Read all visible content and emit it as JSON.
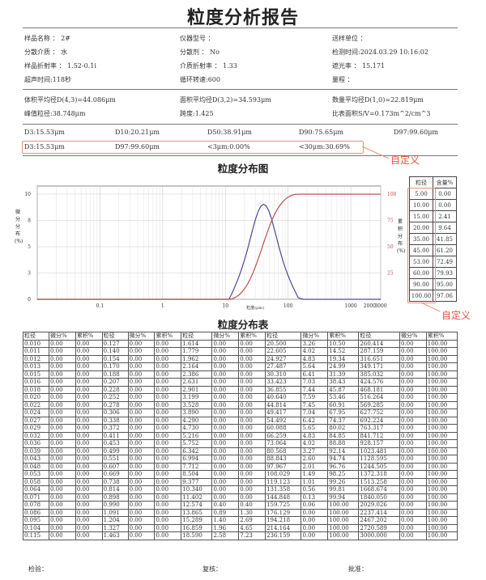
{
  "title": "粒度分析报告",
  "info": [
    [
      "样品名称 ： 2#",
      "仪器型号 ：",
      "送样单位 ："
    ],
    [
      "分散介质 ： 水",
      "分散剂 ： No",
      "检测时间:2024.03.29 10:16:02"
    ],
    [
      "样品折射率 ： 1.52-0.1i",
      "介质折射率 ： 1.33",
      "遮光率 ： 15.171"
    ],
    [
      "超声时间:118秒",
      "循环转速:600",
      "量程 ："
    ]
  ],
  "stats": [
    [
      "体积平均径D(4,3)=44.086μm",
      "面积平均径D(3,2)=34.593μm",
      "数量平均径D(1,0)=22.819μm"
    ],
    [
      "峰值粒径:38.748μm",
      "跨度:1.425",
      "比表面积S/V=0.173m^2/cm^3"
    ]
  ],
  "d_values": [
    "D3:15.53μm",
    "D10:20.21μm",
    "D50:38.91μm",
    "D90:75.65μm",
    "D97:99.60μm"
  ],
  "custom_values": [
    "D3:15.53μm",
    "D97:99.60μm",
    "<3μm:0.00%",
    "<30μm:30.69%"
  ],
  "custom_label": "自定义",
  "chart_title": "粒度分布图",
  "table_title": "粒度分布表",
  "footer": {
    "check": "检验：",
    "review": "复核：",
    "approve": "批准："
  },
  "colors": {
    "differential": "#4a4a9a",
    "cumulative": "#c05050",
    "annotation": "#e0553a"
  },
  "chart_data": {
    "type": "line",
    "x_scale": "log",
    "xlim": [
      0.01,
      3000
    ],
    "xlabel": "粒度(μm)",
    "x_ticks": [
      "0.1",
      "1",
      "10",
      "100",
      "1000",
      "2000",
      "3000"
    ],
    "y_left_label": "微分分布(%)",
    "y_left_ticks": [
      "10",
      "8",
      "5",
      "3",
      "0"
    ],
    "y_right_label": "累积分布(%)",
    "y_right_ticks": [
      "100",
      "75",
      "50",
      "25"
    ],
    "ylim_right": [
      0,
      100
    ],
    "grid": true,
    "series": [
      {
        "name": "微分",
        "axis": "left",
        "color": "#4a4a9a"
      },
      {
        "name": "累积",
        "axis": "right",
        "color": "#c05050"
      }
    ]
  },
  "side_table": {
    "headers": [
      "粒径",
      "含量%"
    ],
    "rows": [
      [
        "5.00",
        "0.00"
      ],
      [
        "10.00",
        "0.00"
      ],
      [
        "15.00",
        "2.41"
      ],
      [
        "20.00",
        "9.64"
      ],
      [
        "35.00",
        "41.85"
      ],
      [
        "45.00",
        "61.20"
      ],
      [
        "53.00",
        "72.49"
      ],
      [
        "60.00",
        "79.93"
      ],
      [
        "90.00",
        "95.00"
      ],
      [
        "100.00",
        "97.06"
      ]
    ]
  },
  "dist_table": {
    "headers": [
      "粒径",
      "微分%",
      "累积%"
    ],
    "groups": [
      [
        [
          "0.010",
          "0.00",
          "0.00"
        ],
        [
          "0.011",
          "0.00",
          "0.00"
        ],
        [
          "0.012",
          "0.00",
          "0.00"
        ],
        [
          "0.013",
          "0.00",
          "0.00"
        ],
        [
          "0.015",
          "0.00",
          "0.00"
        ],
        [
          "0.016",
          "0.00",
          "0.00"
        ],
        [
          "0.018",
          "0.00",
          "0.00"
        ],
        [
          "0.020",
          "0.00",
          "0.00"
        ],
        [
          "0.022",
          "0.00",
          "0.00"
        ],
        [
          "0.024",
          "0.00",
          "0.00"
        ],
        [
          "0.027",
          "0.00",
          "0.00"
        ],
        [
          "0.029",
          "0.00",
          "0.00"
        ],
        [
          "0.032",
          "0.00",
          "0.00"
        ],
        [
          "0.036",
          "0.00",
          "0.00"
        ],
        [
          "0.039",
          "0.00",
          "0.00"
        ],
        [
          "0.043",
          "0.00",
          "0.00"
        ],
        [
          "0.048",
          "0.00",
          "0.00"
        ],
        [
          "0.053",
          "0.00",
          "0.00"
        ],
        [
          "0.058",
          "0.00",
          "0.00"
        ],
        [
          "0.064",
          "0.00",
          "0.00"
        ],
        [
          "0.071",
          "0.00",
          "0.00"
        ],
        [
          "0.078",
          "0.00",
          "0.00"
        ],
        [
          "0.086",
          "0.00",
          "0.00"
        ],
        [
          "0.095",
          "0.00",
          "0.00"
        ],
        [
          "0.104",
          "0.00",
          "0.00"
        ],
        [
          "0.115",
          "0.00",
          "0.00"
        ]
      ],
      [
        [
          "0.127",
          "0.00",
          "0.00"
        ],
        [
          "0.140",
          "0.00",
          "0.00"
        ],
        [
          "0.154",
          "0.00",
          "0.00"
        ],
        [
          "0.170",
          "0.00",
          "0.00"
        ],
        [
          "0.188",
          "0.00",
          "0.00"
        ],
        [
          "0.207",
          "0.00",
          "0.00"
        ],
        [
          "0.228",
          "0.00",
          "0.00"
        ],
        [
          "0.252",
          "0.00",
          "0.00"
        ],
        [
          "0.278",
          "0.00",
          "0.00"
        ],
        [
          "0.306",
          "0.00",
          "0.00"
        ],
        [
          "0.338",
          "0.00",
          "0.00"
        ],
        [
          "0.372",
          "0.00",
          "0.00"
        ],
        [
          "0.411",
          "0.00",
          "0.00"
        ],
        [
          "0.453",
          "0.00",
          "0.00"
        ],
        [
          "0.499",
          "0.00",
          "0.00"
        ],
        [
          "0.551",
          "0.00",
          "0.00"
        ],
        [
          "0.607",
          "0.00",
          "0.00"
        ],
        [
          "0.669",
          "0.00",
          "0.00"
        ],
        [
          "0.738",
          "0.00",
          "0.00"
        ],
        [
          "0.814",
          "0.00",
          "0.00"
        ],
        [
          "0.898",
          "0.00",
          "0.00"
        ],
        [
          "0.990",
          "0.00",
          "0.00"
        ],
        [
          "1.091",
          "0.00",
          "0.00"
        ],
        [
          "1.204",
          "0.00",
          "0.00"
        ],
        [
          "1.327",
          "0.00",
          "0.00"
        ],
        [
          "1.463",
          "0.00",
          "0.00"
        ]
      ],
      [
        [
          "1.614",
          "0.00",
          "0.00"
        ],
        [
          "1.779",
          "0.00",
          "0.00"
        ],
        [
          "1.962",
          "0.00",
          "0.00"
        ],
        [
          "2.164",
          "0.00",
          "0.00"
        ],
        [
          "2.386",
          "0.00",
          "0.00"
        ],
        [
          "2.631",
          "0.00",
          "0.00"
        ],
        [
          "2.901",
          "0.00",
          "0.00"
        ],
        [
          "3.199",
          "0.00",
          "0.00"
        ],
        [
          "3.528",
          "0.00",
          "0.00"
        ],
        [
          "3.890",
          "0.00",
          "0.00"
        ],
        [
          "4.290",
          "0.00",
          "0.00"
        ],
        [
          "4.730",
          "0.00",
          "0.00"
        ],
        [
          "5.216",
          "0.00",
          "0.00"
        ],
        [
          "5.752",
          "0.00",
          "0.00"
        ],
        [
          "6.342",
          "0.00",
          "0.00"
        ],
        [
          "6.994",
          "0.00",
          "0.00"
        ],
        [
          "7.712",
          "0.00",
          "0.00"
        ],
        [
          "8.504",
          "0.00",
          "0.00"
        ],
        [
          "9.377",
          "0.00",
          "0.00"
        ],
        [
          "10.340",
          "0.00",
          "0.00"
        ],
        [
          "11.402",
          "0.00",
          "0.00"
        ],
        [
          "12.574",
          "0.40",
          "0.40"
        ],
        [
          "13.865",
          "0.89",
          "1.30"
        ],
        [
          "15.289",
          "1.40",
          "2.69"
        ],
        [
          "16.859",
          "1.96",
          "4.65"
        ],
        [
          "18.590",
          "2.58",
          "7.23"
        ]
      ],
      [
        [
          "20.500",
          "3.26",
          "10.50"
        ],
        [
          "22.605",
          "4.02",
          "14.52"
        ],
        [
          "24.927",
          "4.83",
          "19.34"
        ],
        [
          "27.487",
          "5.64",
          "24.99"
        ],
        [
          "30.310",
          "6.41",
          "31.39"
        ],
        [
          "33.423",
          "7.03",
          "38.43"
        ],
        [
          "36.855",
          "7.44",
          "45.87"
        ],
        [
          "40.640",
          "7.59",
          "53.46"
        ],
        [
          "44.814",
          "7.45",
          "60.91"
        ],
        [
          "49.417",
          "7.04",
          "67.95"
        ],
        [
          "54.492",
          "6.42",
          "74.37"
        ],
        [
          "60.088",
          "5.65",
          "80.02"
        ],
        [
          "66.259",
          "4.83",
          "84.85"
        ],
        [
          "73.064",
          "4.02",
          "88.88"
        ],
        [
          "80.568",
          "3.27",
          "92.14"
        ],
        [
          "88.843",
          "2.60",
          "94.74"
        ],
        [
          "97.967",
          "2.01",
          "96.76"
        ],
        [
          "108.029",
          "1.49",
          "98.25"
        ],
        [
          "119.123",
          "1.01",
          "99.26"
        ],
        [
          "131.358",
          "0.56",
          "99.81"
        ],
        [
          "144.848",
          "0.13",
          "99.94"
        ],
        [
          "159.725",
          "0.06",
          "100.00"
        ],
        [
          "176.129",
          "0.00",
          "100.00"
        ],
        [
          "194.218",
          "0.00",
          "100.00"
        ],
        [
          "214.164",
          "0.00",
          "100.00"
        ],
        [
          "236.159",
          "0.00",
          "100.00"
        ]
      ],
      [
        [
          "260.414",
          "0.00",
          "100.00"
        ],
        [
          "287.159",
          "0.00",
          "100.00"
        ],
        [
          "316.651",
          "0.00",
          "100.00"
        ],
        [
          "349.171",
          "0.00",
          "100.00"
        ],
        [
          "385.032",
          "0.00",
          "100.00"
        ],
        [
          "424.576",
          "0.00",
          "100.00"
        ],
        [
          "468.181",
          "0.00",
          "100.00"
        ],
        [
          "516.264",
          "0.00",
          "100.00"
        ],
        [
          "569.285",
          "0.00",
          "100.00"
        ],
        [
          "627.752",
          "0.00",
          "100.00"
        ],
        [
          "692.224",
          "0.00",
          "100.00"
        ],
        [
          "763.317",
          "0.00",
          "100.00"
        ],
        [
          "841.712",
          "0.00",
          "100.00"
        ],
        [
          "928.157",
          "0.00",
          "100.00"
        ],
        [
          "1023.481",
          "0.00",
          "100.00"
        ],
        [
          "1128.595",
          "0.00",
          "100.00"
        ],
        [
          "1244.505",
          "0.00",
          "100.00"
        ],
        [
          "1372.318",
          "0.00",
          "100.00"
        ],
        [
          "1513.258",
          "0.00",
          "100.00"
        ],
        [
          "1668.674",
          "0.00",
          "100.00"
        ],
        [
          "1840.050",
          "0.00",
          "100.00"
        ],
        [
          "2029.026",
          "0.00",
          "100.00"
        ],
        [
          "2237.414",
          "0.00",
          "100.00"
        ],
        [
          "2467.202",
          "0.00",
          "100.00"
        ],
        [
          "2720.589",
          "0.00",
          "100.00"
        ],
        [
          "3000.000",
          "0.00",
          "100.00"
        ]
      ]
    ]
  }
}
